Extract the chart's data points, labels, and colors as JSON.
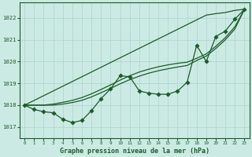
{
  "title": "Graphe pression niveau de la mer (hPa)",
  "bg_color": "#cceae4",
  "grid_color": "#aad4cc",
  "line_color": "#1a5c28",
  "xlim": [
    -0.5,
    23.5
  ],
  "ylim": [
    1016.5,
    1022.7
  ],
  "yticks": [
    1017,
    1018,
    1019,
    1020,
    1021,
    1022
  ],
  "xticks": [
    0,
    1,
    2,
    3,
    4,
    5,
    6,
    7,
    8,
    9,
    10,
    11,
    12,
    13,
    14,
    15,
    16,
    17,
    18,
    19,
    20,
    21,
    22,
    23
  ],
  "upper_line": [
    1018.0,
    1018.217,
    1018.435,
    1018.652,
    1018.87,
    1019.087,
    1019.304,
    1019.522,
    1019.739,
    1019.957,
    1020.174,
    1020.391,
    1020.609,
    1020.826,
    1021.043,
    1021.261,
    1021.478,
    1021.696,
    1021.913,
    1022.13,
    1022.2,
    1022.25,
    1022.35,
    1022.4
  ],
  "mid_line1": [
    1018.0,
    1018.0,
    1018.0,
    1018.05,
    1018.13,
    1018.22,
    1018.35,
    1018.52,
    1018.72,
    1018.93,
    1019.15,
    1019.35,
    1019.52,
    1019.65,
    1019.76,
    1019.85,
    1019.92,
    1019.97,
    1020.15,
    1020.35,
    1020.7,
    1021.1,
    1021.6,
    1022.4
  ],
  "mid_line2": [
    1018.0,
    1018.0,
    1018.0,
    1018.0,
    1018.05,
    1018.12,
    1018.22,
    1018.38,
    1018.57,
    1018.77,
    1018.98,
    1019.17,
    1019.33,
    1019.47,
    1019.58,
    1019.67,
    1019.75,
    1019.82,
    1020.05,
    1020.25,
    1020.6,
    1021.0,
    1021.5,
    1022.4
  ],
  "main_line": [
    1018.0,
    1017.8,
    1017.7,
    1017.65,
    1017.35,
    1017.2,
    1017.3,
    1017.75,
    1018.3,
    1018.75,
    1019.35,
    1019.3,
    1018.65,
    1018.55,
    1018.5,
    1018.5,
    1018.65,
    1019.05,
    1020.75,
    1020.0,
    1021.15,
    1021.4,
    1021.95,
    1022.4
  ]
}
